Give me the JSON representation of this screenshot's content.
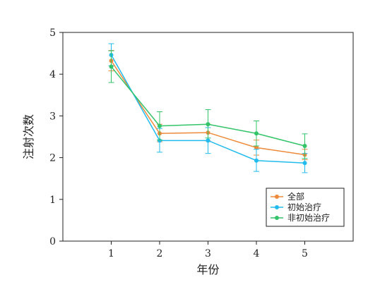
{
  "chart_data": {
    "type": "line",
    "xlabel": "年份",
    "ylabel": "注射次数",
    "x": [
      1,
      2,
      3,
      4,
      5
    ],
    "xticks": [
      "1",
      "2",
      "3",
      "4",
      "5"
    ],
    "xlim": [
      0,
      6
    ],
    "ylim": [
      0,
      5
    ],
    "yticks": [
      "0",
      "1",
      "2",
      "3",
      "4",
      "5"
    ],
    "grid": false,
    "legend_position": "bottom-right",
    "series": [
      {
        "name": "全部",
        "color": "#ee8a3a",
        "values": [
          4.32,
          2.58,
          2.6,
          2.24,
          2.07
        ],
        "err_low": [
          4.08,
          2.38,
          2.4,
          2.06,
          1.95
        ],
        "err_high": [
          4.57,
          2.8,
          2.8,
          2.42,
          2.2
        ]
      },
      {
        "name": "初始治疗",
        "color": "#22bbee",
        "values": [
          4.46,
          2.41,
          2.41,
          1.93,
          1.87
        ],
        "err_low": [
          4.2,
          2.13,
          2.1,
          1.67,
          1.64
        ],
        "err_high": [
          4.73,
          2.7,
          2.72,
          2.2,
          2.1
        ]
      },
      {
        "name": "非初始治疗",
        "color": "#33c46a",
        "values": [
          4.18,
          2.76,
          2.8,
          2.58,
          2.28
        ],
        "err_low": [
          3.8,
          2.42,
          2.47,
          2.28,
          1.98
        ],
        "err_high": [
          4.56,
          3.1,
          3.15,
          2.88,
          2.57
        ]
      }
    ]
  }
}
